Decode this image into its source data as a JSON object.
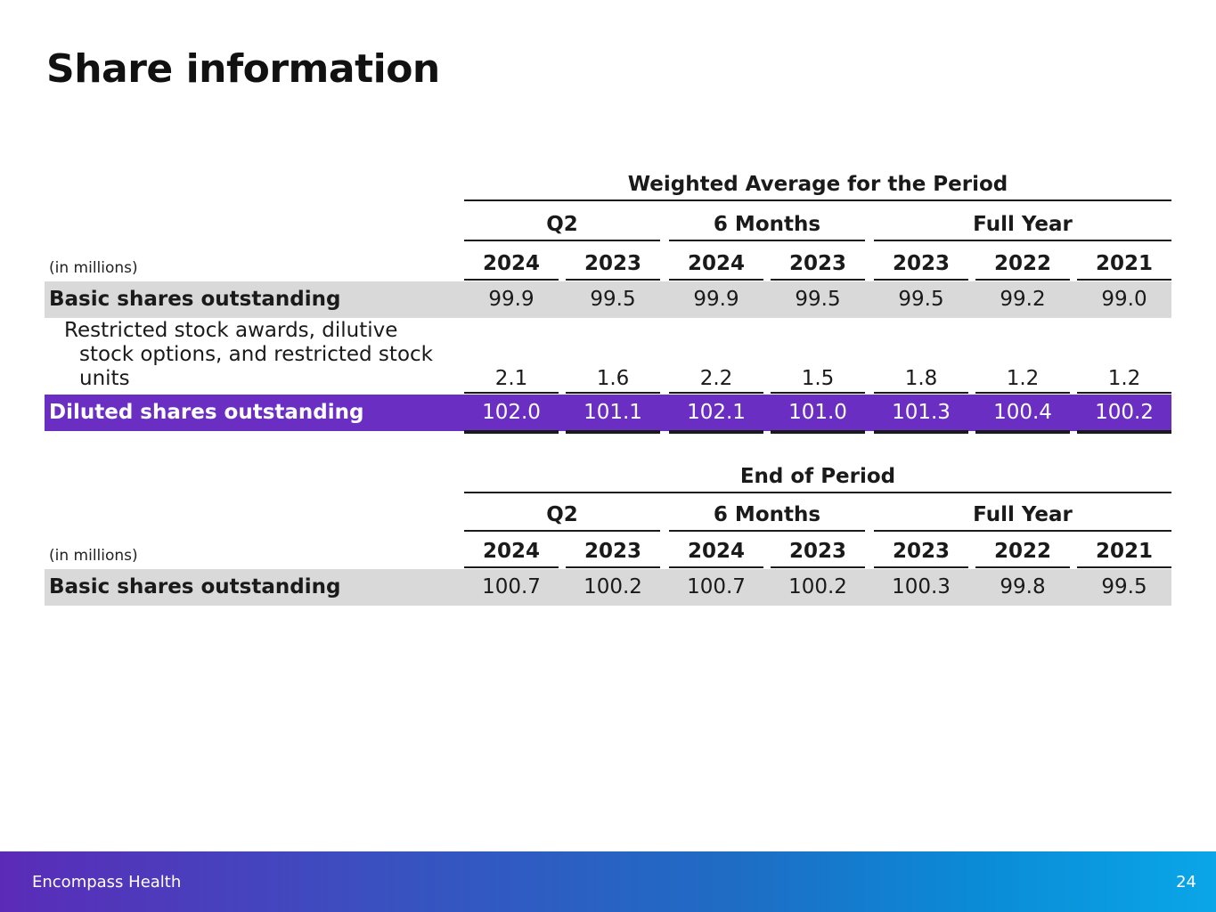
{
  "title": "Share information",
  "table1": {
    "group_title": "Weighted Average for the Period",
    "periods": [
      "Q2",
      "6 Months",
      "Full Year"
    ],
    "years": [
      "2024",
      "2023",
      "2024",
      "2023",
      "2023",
      "2022",
      "2021"
    ],
    "unit": "(in millions)",
    "basic": {
      "label": "Basic shares outstanding",
      "values": [
        "99.9",
        "99.5",
        "99.9",
        "99.5",
        "99.5",
        "99.2",
        "99.0"
      ]
    },
    "restricted": {
      "label_line1": "Restricted stock awards, dilutive",
      "label_line2": "stock options, and restricted stock",
      "label_line3": "units",
      "values": [
        "2.1",
        "1.6",
        "2.2",
        "1.5",
        "1.8",
        "1.2",
        "1.2"
      ]
    },
    "diluted": {
      "label": "Diluted shares outstanding",
      "values": [
        "102.0",
        "101.1",
        "102.1",
        "101.0",
        "101.3",
        "100.4",
        "100.2"
      ]
    }
  },
  "table2": {
    "group_title": "End of Period",
    "periods": [
      "Q2",
      "6 Months",
      "Full Year"
    ],
    "years": [
      "2024",
      "2023",
      "2024",
      "2023",
      "2023",
      "2022",
      "2021"
    ],
    "unit": "(in millions)",
    "basic": {
      "label": "Basic shares outstanding",
      "values": [
        "100.7",
        "100.2",
        "100.7",
        "100.2",
        "100.3",
        "99.8",
        "99.5"
      ]
    }
  },
  "footer": {
    "brand": "Encompass Health",
    "page_number": "24"
  },
  "colors": {
    "highlight_row": "#6a2fc2",
    "gray_row": "#d9d9d9"
  }
}
